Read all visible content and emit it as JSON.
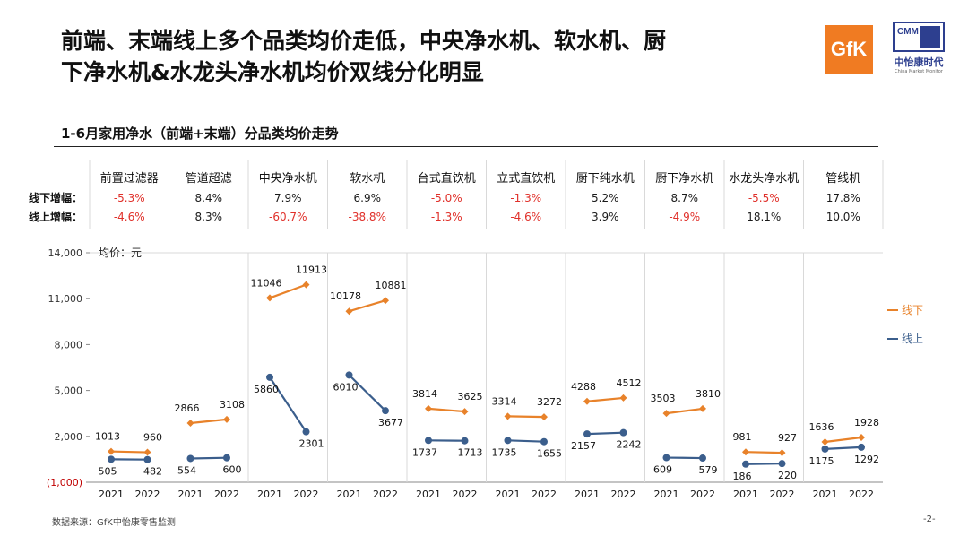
{
  "slide": {
    "title_line1": "前端、末端线上多个品类均价走低，中央净水机、软水机、厨",
    "title_line2": "下净水机&水龙头净水机均价双线分化明显",
    "subtitle": "1-6月家用净水（前端+末端）分品类均价走势",
    "source": "数据来源：GfK中怡康零售监测",
    "page_number": "-2-",
    "logo_gfk": "GfK",
    "logo_cmm_mark": "CMM",
    "logo_cmm_cn": "中怡康时代",
    "logo_cmm_en": "China Market Monitor"
  },
  "chart_data": {
    "type": "line",
    "unit_label": "均价：元",
    "ylim": [
      -1000,
      14000
    ],
    "yticks": [
      "(1,000)",
      "2,000",
      "5,000",
      "8,000",
      "11,000",
      "14,000"
    ],
    "ytick_values": [
      -1000,
      2000,
      5000,
      8000,
      11000,
      14000
    ],
    "row_labels": {
      "offline": "线下增幅：",
      "online": "线上增幅："
    },
    "categories": [
      {
        "name": "前置过滤器",
        "years": [
          "2021",
          "2022"
        ],
        "offline": [
          1013,
          960
        ],
        "online": [
          505,
          482
        ],
        "offline_growth": "-5.3%",
        "online_growth": "-4.6%"
      },
      {
        "name": "管道超滤",
        "years": [
          "2021",
          "2022"
        ],
        "offline": [
          2866,
          3108
        ],
        "online": [
          554,
          600
        ],
        "offline_growth": "8.4%",
        "online_growth": "8.3%"
      },
      {
        "name": "中央净水机",
        "years": [
          "2021",
          "2022"
        ],
        "offline": [
          11046,
          11913
        ],
        "online": [
          5860,
          2301
        ],
        "offline_growth": "7.9%",
        "online_growth": "-60.7%"
      },
      {
        "name": "软水机",
        "years": [
          "2021",
          "2022"
        ],
        "offline": [
          10178,
          10881
        ],
        "online": [
          6010,
          3677
        ],
        "offline_growth": "6.9%",
        "online_growth": "-38.8%"
      },
      {
        "name": "台式直饮机",
        "years": [
          "2021",
          "2022"
        ],
        "offline": [
          3814,
          3625
        ],
        "online": [
          1737,
          1713
        ],
        "offline_growth": "-5.0%",
        "online_growth": "-1.3%"
      },
      {
        "name": "立式直饮机",
        "years": [
          "2021",
          "2022"
        ],
        "offline": [
          3314,
          3272
        ],
        "online": [
          1735,
          1655
        ],
        "offline_growth": "-1.3%",
        "online_growth": "-4.6%"
      },
      {
        "name": "厨下纯水机",
        "years": [
          "2021",
          "2022"
        ],
        "offline": [
          4288,
          4512
        ],
        "online": [
          2157,
          2242
        ],
        "offline_growth": "5.2%",
        "online_growth": "3.9%"
      },
      {
        "name": "厨下净水机",
        "years": [
          "2021",
          "2022"
        ],
        "offline": [
          3503,
          3810
        ],
        "online": [
          609,
          579
        ],
        "offline_growth": "8.7%",
        "online_growth": "-4.9%"
      },
      {
        "name": "水龙头净水机",
        "years": [
          "2021",
          "2022"
        ],
        "offline": [
          981,
          927
        ],
        "online": [
          186,
          220
        ],
        "offline_growth": "-5.5%",
        "online_growth": "18.1%"
      },
      {
        "name": "管线机",
        "years": [
          "2021",
          "2022"
        ],
        "offline": [
          1636,
          1928
        ],
        "online": [
          1175,
          1292
        ],
        "offline_growth": "17.8%",
        "online_growth": "10.0%"
      }
    ],
    "series": [
      {
        "name": "线下",
        "key": "offline",
        "color": "#e8822a"
      },
      {
        "name": "线上",
        "key": "online",
        "color": "#3b5e8c"
      }
    ],
    "colors": {
      "negative": "#e0302a",
      "positive": "#1a1a1a",
      "grid": "#d9d9d9",
      "axis": "#888888",
      "negative_tick": "#c00000"
    },
    "legend_position": "right",
    "grid": true
  }
}
